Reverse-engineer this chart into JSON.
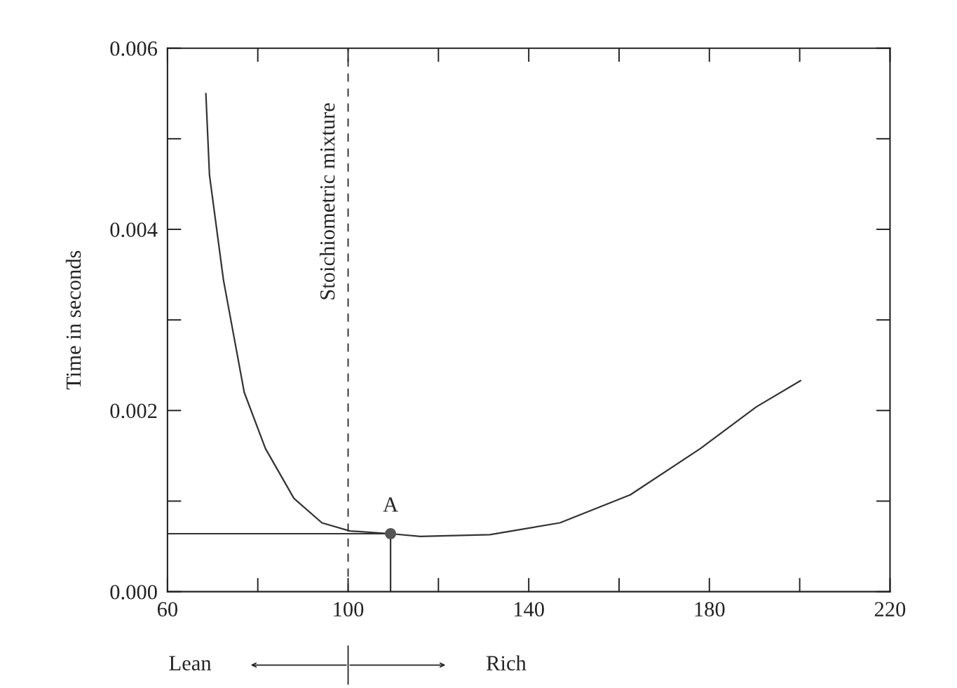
{
  "chart_data": {
    "type": "line",
    "ylabel": "Time in seconds",
    "series": [
      {
        "color": "#333333",
        "x": [
          68.5,
          69.3,
          72.4,
          77,
          81.7,
          88,
          94.2,
          100.4,
          109.4,
          116,
          131.4,
          146.9,
          162.5,
          178,
          190.4,
          200.2
        ],
        "values": [
          0.0055,
          0.0046,
          0.00344,
          0.0022,
          0.00158,
          0.00103,
          0.00076,
          0.00067,
          0.00064,
          0.00061,
          0.00063,
          0.00076,
          0.00107,
          0.00158,
          0.00204,
          0.00233
        ]
      },
      {
        "type": "line",
        "color": "#333333",
        "x": [
          60,
          109.4,
          109.4
        ],
        "values": [
          0.00064,
          0.00064,
          0
        ]
      },
      {
        "type": "scatter",
        "color": "#555555",
        "x": [
          109.4
        ],
        "values": [
          0.00064
        ]
      }
    ],
    "xlim": [
      60,
      220
    ],
    "xticks": [
      60,
      100,
      140,
      180,
      220
    ],
    "ylim": [
      0,
      0.006
    ],
    "yticks": [
      {
        "value": 0,
        "label": "0.000"
      },
      {
        "value": 0.002,
        "label": "0.002"
      },
      {
        "value": 0.004,
        "label": "0.004"
      },
      {
        "value": 0.006,
        "label": "0.006"
      }
    ],
    "ref_lines": [
      {
        "axis": "x",
        "value": 100,
        "label": "Stoichiometric mixture",
        "color": "#333333",
        "line_style": "dashed"
      }
    ],
    "annotations": [
      {
        "text": "A",
        "x": 109.4,
        "y": 0.00064
      },
      "Lean",
      "Rich"
    ],
    "grid": false
  }
}
